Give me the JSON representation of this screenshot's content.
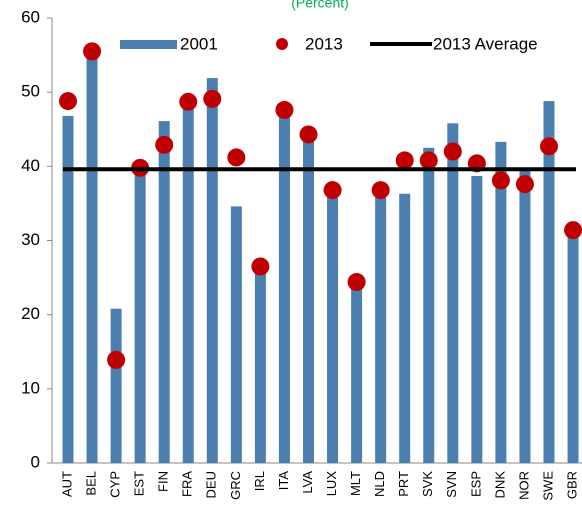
{
  "chart_data": {
    "type": "bar",
    "title": "(Percent)",
    "categories": [
      "AUT",
      "BEL",
      "CYP",
      "EST",
      "FIN",
      "FRA",
      "DEU",
      "GRC",
      "IRL",
      "ITA",
      "LVA",
      "LUX",
      "MLT",
      "NLD",
      "PRT",
      "SVK",
      "SVN",
      "ESP",
      "DNK",
      "NOR",
      "SWE",
      "GBR"
    ],
    "series": [
      {
        "name": "2001",
        "type": "bar",
        "color": "#4a7fb0",
        "values": [
          46.8,
          55.7,
          20.8,
          39.5,
          46.1,
          48.2,
          51.9,
          34.6,
          26.0,
          46.6,
          43.9,
          36.5,
          23.5,
          36.5,
          36.3,
          42.5,
          45.8,
          38.7,
          43.3,
          39.5,
          48.8,
          31.0
        ]
      },
      {
        "name": "2013",
        "type": "scatter",
        "color": "#c00000",
        "values": [
          48.8,
          55.5,
          13.9,
          39.8,
          42.9,
          48.7,
          49.1,
          41.2,
          26.5,
          47.6,
          44.3,
          36.8,
          24.4,
          36.8,
          40.8,
          40.8,
          42.0,
          40.4,
          38.1,
          37.6,
          42.7,
          31.4
        ]
      }
    ],
    "average": {
      "name": "2013 Average",
      "value": 39.6,
      "color": "#000000"
    },
    "ylim": [
      0,
      60
    ],
    "yticks": [
      0,
      10,
      20,
      30,
      40,
      50,
      60
    ]
  }
}
